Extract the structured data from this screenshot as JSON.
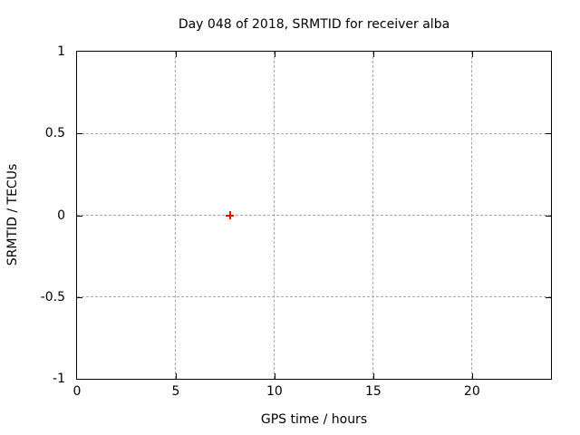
{
  "chart_data": {
    "type": "scatter",
    "title": "Day 048 of 2018, SRMTID for receiver alba",
    "xlabel": "GPS time / hours",
    "ylabel": "SRMTID / TECUs",
    "xlim": [
      0,
      24
    ],
    "ylim": [
      -1,
      1
    ],
    "grid": true,
    "legend_position": "none",
    "x_ticks": {
      "values": [
        0,
        5,
        10,
        15,
        20
      ],
      "labels": [
        "0",
        "5",
        "10",
        "15",
        "20"
      ]
    },
    "y_ticks": {
      "values": [
        1,
        0.5,
        0,
        -0.5,
        -1
      ],
      "labels": [
        "1",
        "0.5",
        "0",
        "-0.5",
        "-1"
      ]
    },
    "series": [
      {
        "name": "SRMTID",
        "marker": "plus",
        "color": "#ff0000",
        "points": [
          {
            "x": 7.75,
            "y": 0.0
          }
        ]
      }
    ],
    "colors": {
      "background": "#ffffff",
      "axis": "#000000",
      "grid": "#a8a8a8",
      "text": "#000000"
    }
  }
}
